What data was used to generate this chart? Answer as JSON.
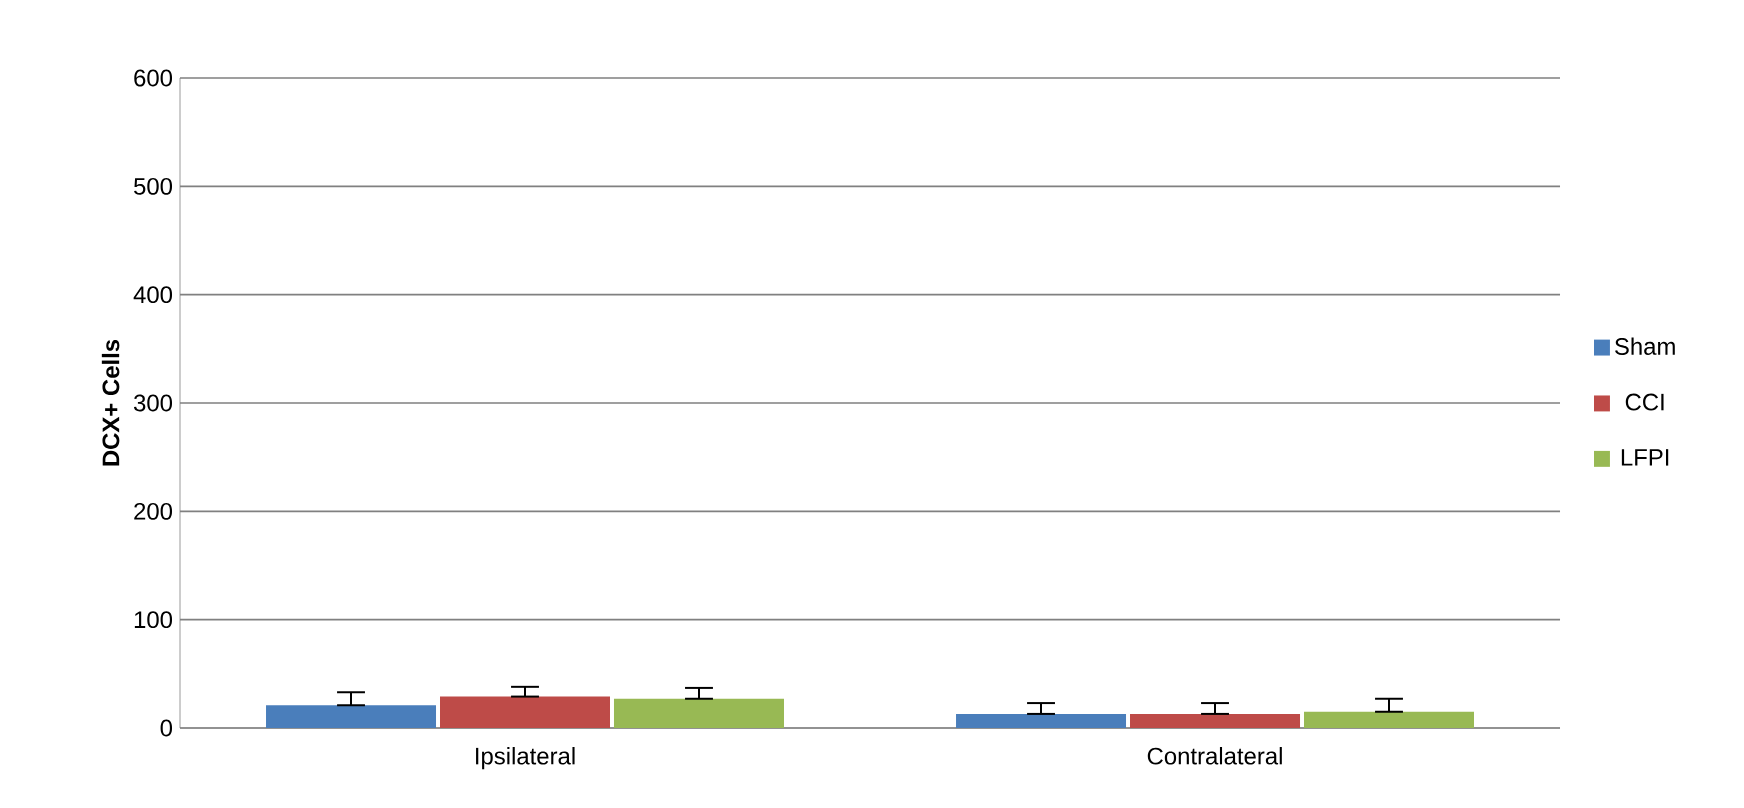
{
  "chart_data": {
    "type": "bar",
    "ylabel": "DCX+ Cells",
    "categories": [
      "Ipsilateral",
      "Contralateral"
    ],
    "series": [
      {
        "name": "Sham",
        "color": "#4a7ebb",
        "values": [
          21,
          13
        ],
        "errors": [
          [
            21,
            33
          ],
          [
            13,
            23
          ]
        ]
      },
      {
        "name": "CCI",
        "color": "#be4b48",
        "values": [
          29,
          13
        ],
        "errors": [
          [
            29,
            38
          ],
          [
            13,
            23
          ]
        ]
      },
      {
        "name": "LFPI",
        "color": "#98b954",
        "values": [
          27,
          15
        ],
        "errors": [
          [
            27,
            37
          ],
          [
            15,
            27
          ]
        ]
      }
    ],
    "ylim": [
      0,
      600
    ],
    "yticks": [
      0,
      100,
      200,
      300,
      400,
      500,
      600
    ],
    "grid": "y",
    "legend": "right"
  }
}
